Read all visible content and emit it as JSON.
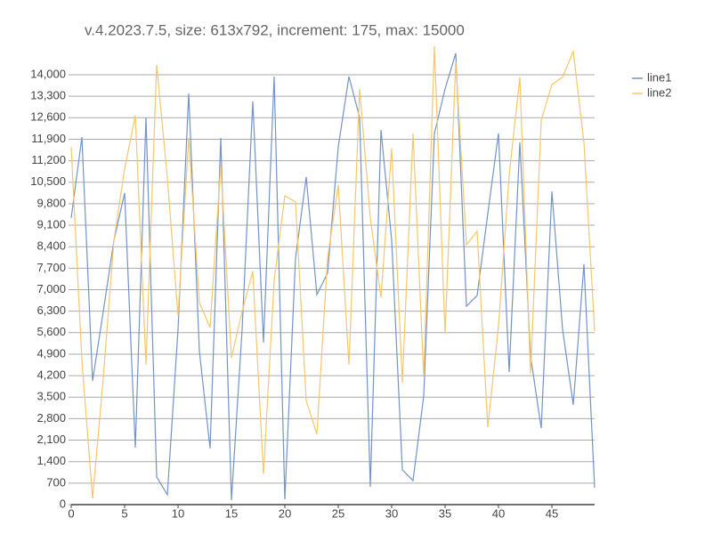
{
  "chart_data": {
    "type": "line",
    "title": "v.4.2023.7.5, size: 613x792, increment: 175, max: 15000",
    "x": [
      0,
      1,
      2,
      3,
      4,
      5,
      6,
      7,
      8,
      9,
      10,
      11,
      12,
      13,
      14,
      15,
      16,
      17,
      18,
      19,
      20,
      21,
      22,
      23,
      24,
      25,
      26,
      27,
      28,
      29,
      30,
      31,
      32,
      33,
      34,
      35,
      36,
      37,
      38,
      39,
      40,
      41,
      42,
      43,
      44,
      45,
      46,
      47,
      48,
      49
    ],
    "series": [
      {
        "name": "line1",
        "color": "#7393c9",
        "values": [
          9340,
          11970,
          4030,
          6290,
          8610,
          10150,
          1855,
          12610,
          900,
          320,
          5710,
          13390,
          4990,
          1830,
          11940,
          145,
          5710,
          13130,
          5280,
          13940,
          175,
          8030,
          10670,
          6840,
          7540,
          11650,
          13940,
          12610,
          580,
          12200,
          8610,
          1130,
          780,
          3540,
          12090,
          13540,
          14700,
          6460,
          6810,
          9480,
          12090,
          4320,
          11800,
          4840,
          2490,
          10200,
          5710,
          3250,
          7830,
          550
        ]
      },
      {
        "name": "line2",
        "color": "#f5c76a",
        "values": [
          11650,
          4700,
          200,
          4120,
          8610,
          10930,
          12670,
          4550,
          14320,
          10640,
          6150,
          11940,
          6580,
          5770,
          11070,
          4780,
          6290,
          7600,
          990,
          7310,
          10060,
          9860,
          3390,
          2290,
          8030,
          10410,
          4550,
          13540,
          9340,
          6750,
          11600,
          3970,
          12090,
          4170,
          14930,
          5570,
          14410,
          8470,
          8900,
          2520,
          5800,
          10730,
          13920,
          4260,
          12520,
          13680,
          13920,
          14760,
          11800,
          5650
        ]
      }
    ],
    "xlim": [
      0,
      49
    ],
    "xticks": [
      0,
      5,
      10,
      15,
      20,
      25,
      30,
      35,
      40,
      45
    ],
    "ylim": [
      0,
      15000
    ],
    "yticks": [
      0,
      700,
      {
        "value": 1400,
        "label": "1,400"
      },
      {
        "value": 2100,
        "label": "2,100"
      },
      {
        "value": 2800,
        "label": "2,800"
      },
      {
        "value": 3500,
        "label": "3,500"
      },
      {
        "value": 4200,
        "label": "4,200"
      },
      {
        "value": 4900,
        "label": "4,900"
      },
      {
        "value": 5600,
        "label": "5,600"
      },
      {
        "value": 6300,
        "label": "6,300"
      },
      {
        "value": 7000,
        "label": "7,000"
      },
      {
        "value": 7700,
        "label": "7,700"
      },
      {
        "value": 8400,
        "label": "8,400"
      },
      {
        "value": 9100,
        "label": "9,100"
      },
      {
        "value": 9800,
        "label": "9,800"
      },
      {
        "value": 10500,
        "label": "10,500"
      },
      {
        "value": 11200,
        "label": "11,200"
      },
      {
        "value": 11900,
        "label": "11,900"
      },
      {
        "value": 12600,
        "label": "12,600"
      },
      {
        "value": 13300,
        "label": "13,300"
      },
      {
        "value": 14000,
        "label": "14,000"
      }
    ],
    "grid": true,
    "legend": "right"
  }
}
